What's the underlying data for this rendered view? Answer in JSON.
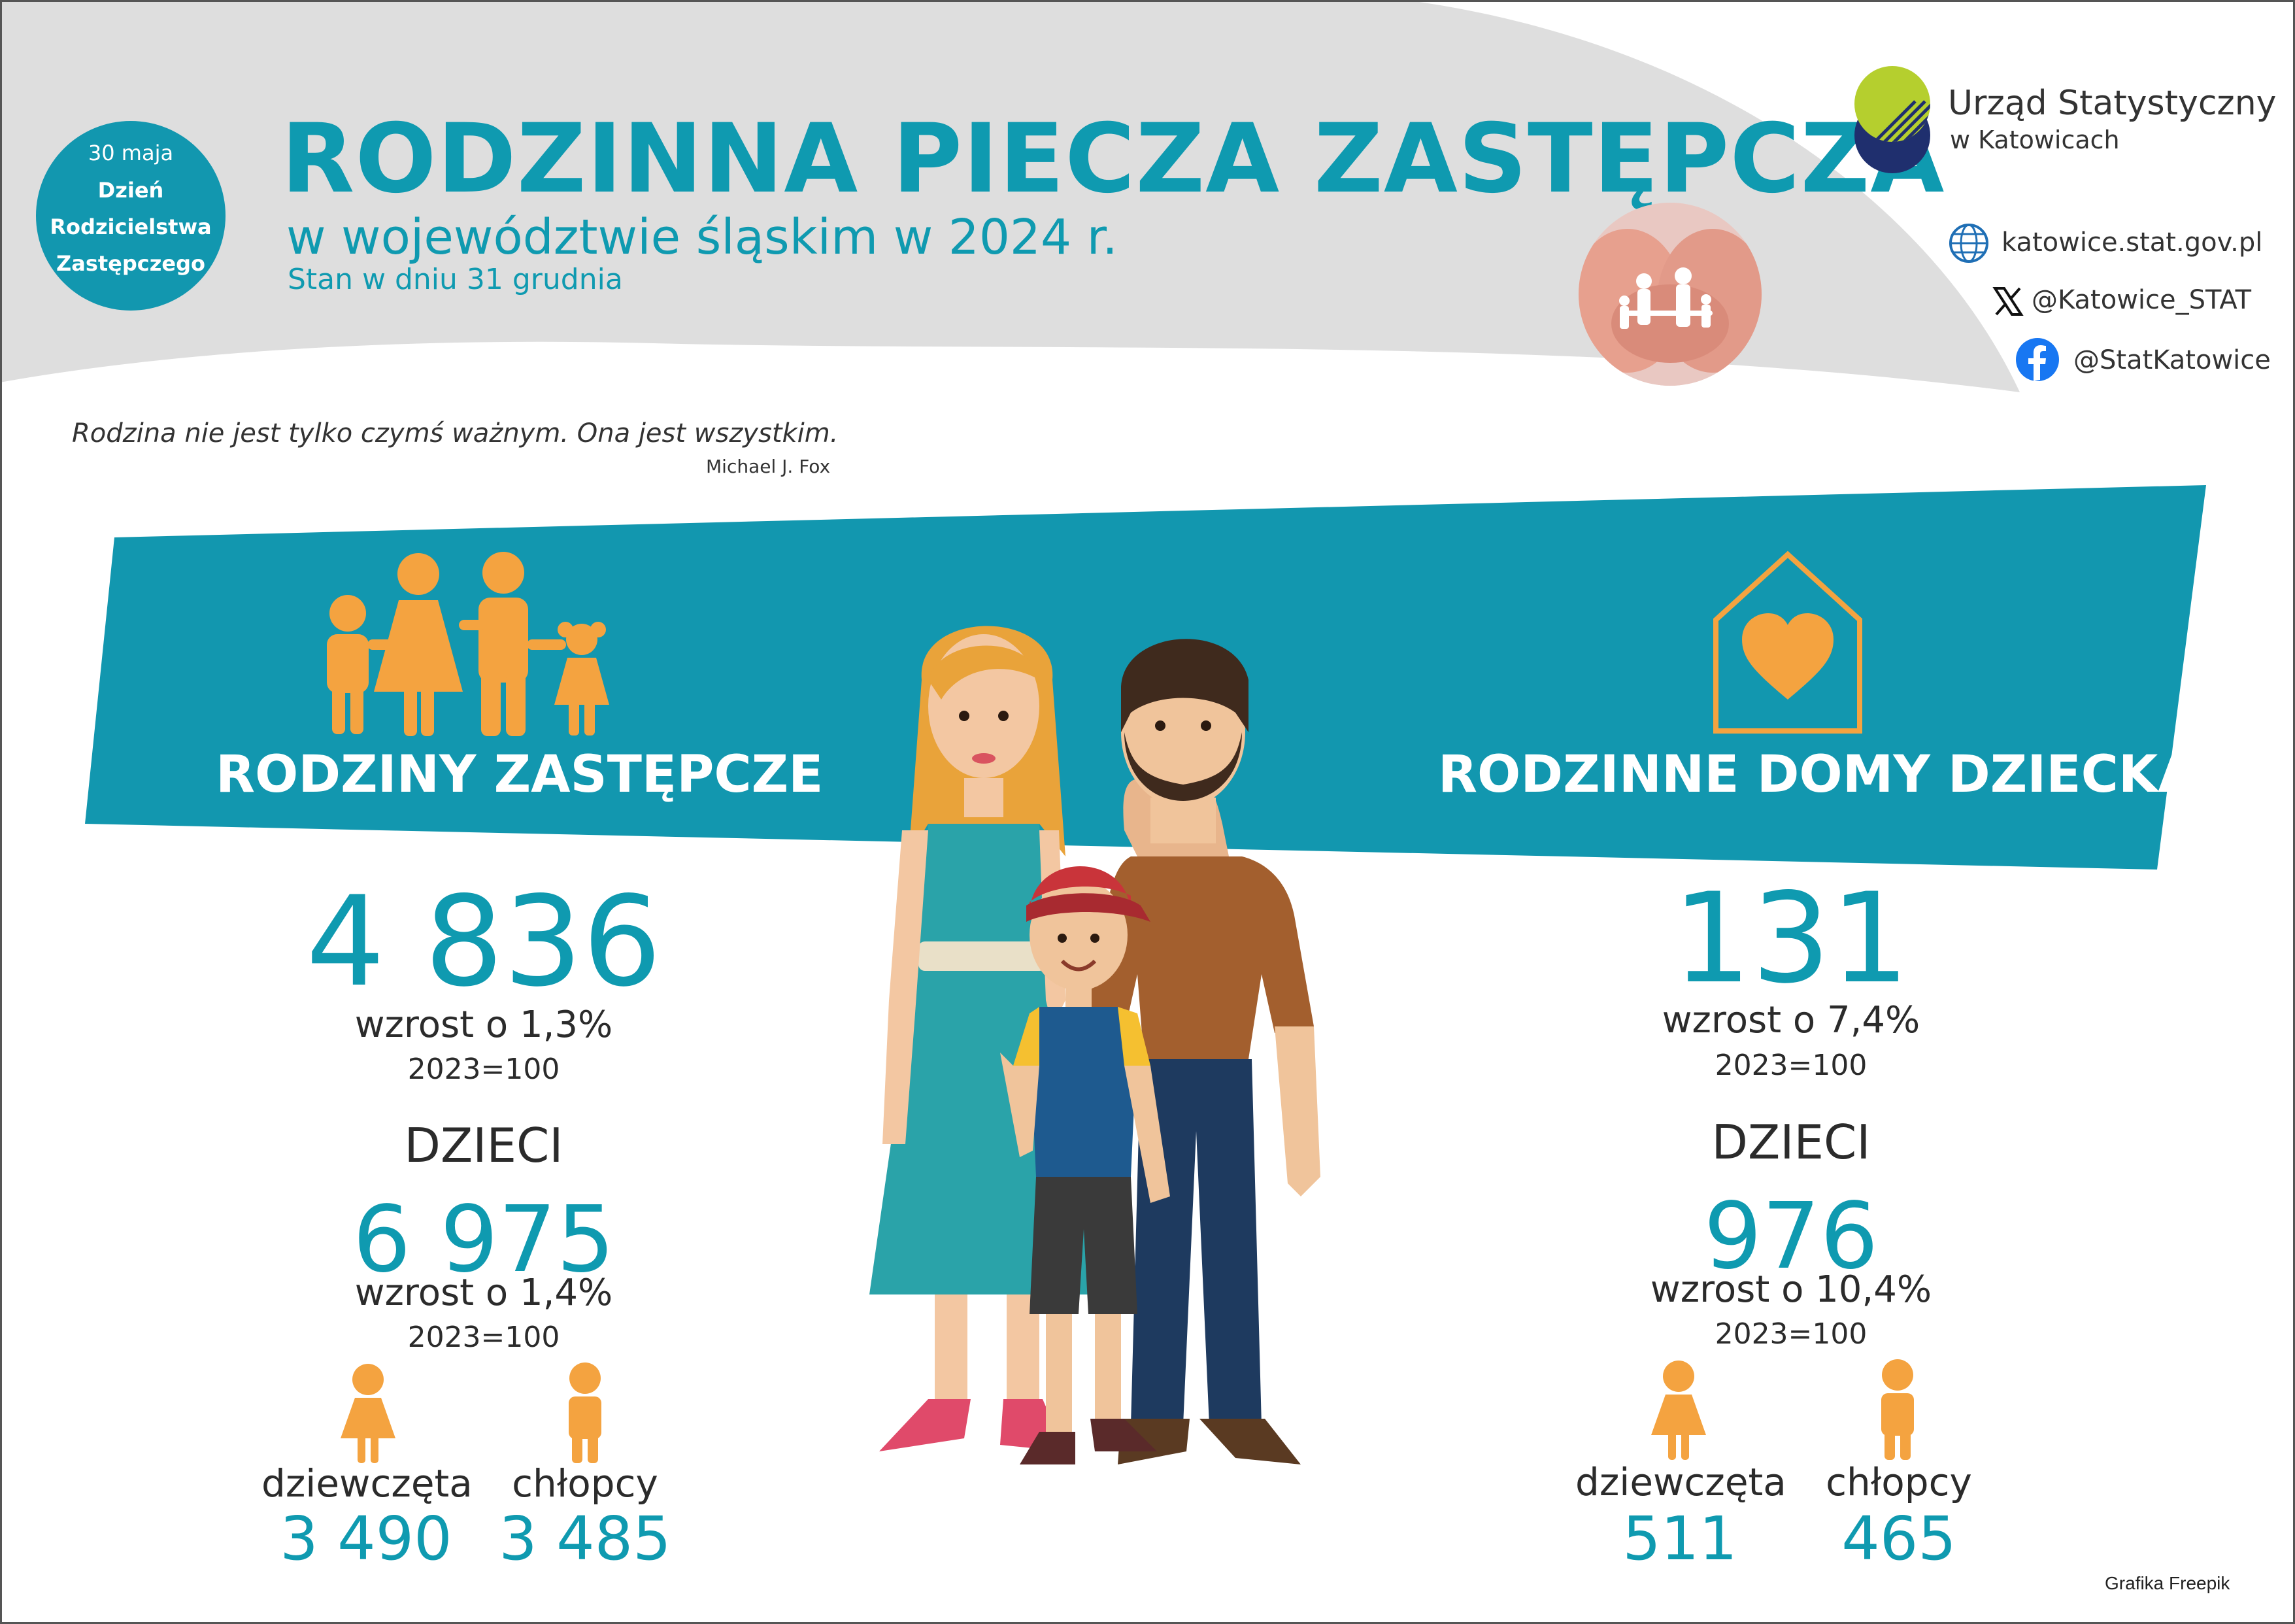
{
  "colors": {
    "teal": "#1297af",
    "orange": "#f4a340",
    "grey": "#dddddd",
    "text": "#2b2b2b"
  },
  "badge": {
    "date": "30 maja",
    "line1": "Dzień",
    "line2": "Rodzicielstwa",
    "line3": "Zastępczego"
  },
  "header": {
    "title": "RODZINNA PIECZA ZASTĘPCZA",
    "subtitle": "w województwie śląskim w 2024 r.",
    "date_note": "Stan w dniu 31 grudnia"
  },
  "org": {
    "name": "Urząd Statystyczny",
    "city": "w Katowicach",
    "website": "katowice.stat.gov.pl",
    "x_handle": "@Katowice_STAT",
    "facebook": "@StatKatowice",
    "icons": [
      "globe-icon",
      "x-icon",
      "facebook-icon"
    ]
  },
  "quote": {
    "text": "Rodzina nie jest tylko czymś ważnym. Ona jest wszystkim.",
    "author": "Michael J. Fox"
  },
  "left": {
    "title": "RODZINY ZASTĘPCZE",
    "count": "4 836",
    "change": "wzrost o 1,3%",
    "base": "2023=100",
    "kids_label": "DZIECI",
    "kids_count": "6 975",
    "kids_change": "wzrost o 1,4%",
    "kids_base": "2023=100",
    "girls_label": "dziewczęta",
    "girls_count": "3 490",
    "boys_label": "chłopcy",
    "boys_count": "3 485"
  },
  "right": {
    "title": "RODZINNE DOMY DZIECKA",
    "count": "131",
    "change": "wzrost o 7,4%",
    "base": "2023=100",
    "kids_label": "DZIECI",
    "kids_count": "976",
    "kids_change": "wzrost o 10,4%",
    "kids_base": "2023=100",
    "girls_label": "dziewczęta",
    "girls_count": "511",
    "boys_label": "chłopcy",
    "boys_count": "465"
  },
  "credit": "Grafika Freepik"
}
